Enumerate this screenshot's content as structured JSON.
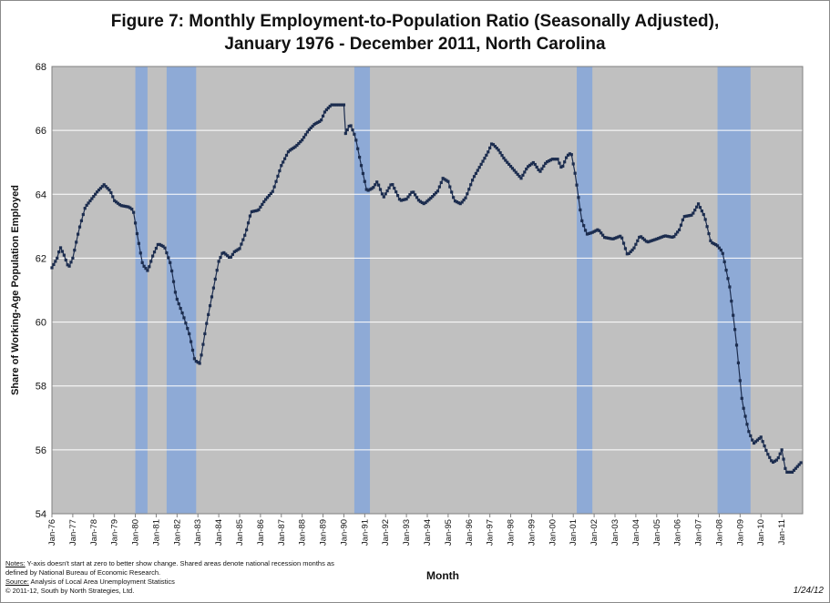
{
  "chart_data": {
    "type": "line",
    "title_line1": "Figure 7: Monthly Employment-to-Population  Ratio (Seasonally Adjusted),",
    "title_line2": "January 1976 - December 2011, North Carolina",
    "xlabel": "Month",
    "ylabel": "Share of  Working-Age Population  Employed",
    "ylim": [
      54,
      68
    ],
    "yticks": [
      "54",
      "56",
      "58",
      "60",
      "62",
      "64",
      "66",
      "68"
    ],
    "xticks": [
      "Jan-76",
      "Jan-77",
      "Jan-78",
      "Jan-79",
      "Jan-80",
      "Jan-81",
      "Jan-82",
      "Jan-83",
      "Jan-84",
      "Jan-85",
      "Jan-86",
      "Jan-87",
      "Jan-88",
      "Jan-89",
      "Jan-90",
      "Jan-91",
      "Jan-92",
      "Jan-93",
      "Jan-94",
      "Jan-95",
      "Jan-96",
      "Jan-97",
      "Jan-98",
      "Jan-99",
      "Jan-00",
      "Jan-01",
      "Jan-02",
      "Jan-03",
      "Jan-04",
      "Jan-05",
      "Jan-06",
      "Jan-07",
      "Jan-08",
      "Jan-09",
      "Jan-10",
      "Jan-11"
    ],
    "grid": true,
    "legend": "none",
    "recessions": [
      {
        "start": "Jan-80",
        "end": "Jul-80"
      },
      {
        "start": "Jul-81",
        "end": "Nov-82"
      },
      {
        "start": "Jul-90",
        "end": "Mar-91"
      },
      {
        "start": "Mar-01",
        "end": "Nov-01"
      },
      {
        "start": "Dec-07",
        "end": "Jun-09"
      }
    ],
    "series": [
      {
        "marker": "square",
        "start": "Jan-76",
        "end": "Dec-11",
        "anchors_year_values": [
          [
            1976.0,
            61.7
          ],
          [
            1976.25,
            62.0
          ],
          [
            1976.4,
            62.35
          ],
          [
            1976.58,
            62.1
          ],
          [
            1976.8,
            61.7
          ],
          [
            1977.0,
            62.0
          ],
          [
            1977.3,
            62.9
          ],
          [
            1977.6,
            63.6
          ],
          [
            1977.9,
            63.85
          ],
          [
            1978.2,
            64.1
          ],
          [
            1978.5,
            64.3
          ],
          [
            1978.8,
            64.1
          ],
          [
            1979.0,
            63.8
          ],
          [
            1979.3,
            63.65
          ],
          [
            1979.7,
            63.6
          ],
          [
            1979.9,
            63.5
          ],
          [
            1980.1,
            62.7
          ],
          [
            1980.35,
            61.8
          ],
          [
            1980.6,
            61.6
          ],
          [
            1980.85,
            62.1
          ],
          [
            1981.1,
            62.45
          ],
          [
            1981.4,
            62.35
          ],
          [
            1981.7,
            61.8
          ],
          [
            1981.95,
            60.8
          ],
          [
            1982.3,
            60.2
          ],
          [
            1982.6,
            59.6
          ],
          [
            1982.85,
            58.8
          ],
          [
            1983.1,
            58.7
          ],
          [
            1983.4,
            59.9
          ],
          [
            1983.7,
            60.9
          ],
          [
            1984.0,
            61.9
          ],
          [
            1984.2,
            62.2
          ],
          [
            1984.55,
            62.0
          ],
          [
            1984.75,
            62.2
          ],
          [
            1985.0,
            62.3
          ],
          [
            1985.3,
            62.8
          ],
          [
            1985.55,
            63.45
          ],
          [
            1985.9,
            63.5
          ],
          [
            1986.2,
            63.8
          ],
          [
            1986.6,
            64.1
          ],
          [
            1987.0,
            64.9
          ],
          [
            1987.35,
            65.35
          ],
          [
            1987.7,
            65.5
          ],
          [
            1988.0,
            65.7
          ],
          [
            1988.3,
            66.0
          ],
          [
            1988.6,
            66.2
          ],
          [
            1988.9,
            66.3
          ],
          [
            1989.1,
            66.6
          ],
          [
            1989.4,
            66.8
          ],
          [
            1990.0,
            66.8
          ],
          [
            1990.08,
            65.9
          ],
          [
            1990.3,
            66.2
          ],
          [
            1990.55,
            65.8
          ],
          [
            1990.8,
            65.0
          ],
          [
            1991.1,
            64.1
          ],
          [
            1991.4,
            64.2
          ],
          [
            1991.6,
            64.4
          ],
          [
            1991.9,
            63.9
          ],
          [
            1992.3,
            64.35
          ],
          [
            1992.7,
            63.8
          ],
          [
            1993.0,
            63.85
          ],
          [
            1993.3,
            64.1
          ],
          [
            1993.6,
            63.8
          ],
          [
            1993.85,
            63.7
          ],
          [
            1994.2,
            63.9
          ],
          [
            1994.5,
            64.1
          ],
          [
            1994.75,
            64.5
          ],
          [
            1995.0,
            64.4
          ],
          [
            1995.3,
            63.8
          ],
          [
            1995.6,
            63.7
          ],
          [
            1995.85,
            63.9
          ],
          [
            1996.2,
            64.5
          ],
          [
            1996.55,
            64.9
          ],
          [
            1996.9,
            65.3
          ],
          [
            1997.1,
            65.6
          ],
          [
            1997.4,
            65.4
          ],
          [
            1997.7,
            65.1
          ],
          [
            1998.1,
            64.8
          ],
          [
            1998.5,
            64.5
          ],
          [
            1998.8,
            64.85
          ],
          [
            1999.1,
            65.0
          ],
          [
            1999.4,
            64.7
          ],
          [
            1999.7,
            65.0
          ],
          [
            2000.0,
            65.1
          ],
          [
            2000.25,
            65.1
          ],
          [
            2000.45,
            64.8
          ],
          [
            2000.7,
            65.2
          ],
          [
            2000.9,
            65.3
          ],
          [
            2001.1,
            64.6
          ],
          [
            2001.4,
            63.2
          ],
          [
            2001.65,
            62.75
          ],
          [
            2001.9,
            62.8
          ],
          [
            2002.2,
            62.9
          ],
          [
            2002.5,
            62.65
          ],
          [
            2002.9,
            62.6
          ],
          [
            2003.3,
            62.7
          ],
          [
            2003.6,
            62.1
          ],
          [
            2003.9,
            62.3
          ],
          [
            2004.2,
            62.7
          ],
          [
            2004.55,
            62.5
          ],
          [
            2005.0,
            62.6
          ],
          [
            2005.4,
            62.7
          ],
          [
            2005.8,
            62.65
          ],
          [
            2006.1,
            62.9
          ],
          [
            2006.3,
            63.3
          ],
          [
            2006.7,
            63.35
          ],
          [
            2007.0,
            63.7
          ],
          [
            2007.3,
            63.3
          ],
          [
            2007.6,
            62.5
          ],
          [
            2007.9,
            62.4
          ],
          [
            2008.15,
            62.2
          ],
          [
            2008.5,
            61.1
          ],
          [
            2008.8,
            59.5
          ],
          [
            2009.1,
            57.5
          ],
          [
            2009.4,
            56.6
          ],
          [
            2009.65,
            56.2
          ],
          [
            2010.0,
            56.4
          ],
          [
            2010.3,
            55.9
          ],
          [
            2010.55,
            55.6
          ],
          [
            2010.8,
            55.7
          ],
          [
            2011.0,
            56.0
          ],
          [
            2011.2,
            55.3
          ],
          [
            2011.5,
            55.3
          ],
          [
            2011.92,
            55.6
          ]
        ]
      }
    ]
  },
  "notes": {
    "line1_prefix": "Notes:",
    "line1_text": " Y-axis doesn't start at zero to better show change.  Shared areas denote national recession months as",
    "line2_text": "defined by National Bureau of Economic Research.",
    "line3_prefix": "Source:",
    "line3_text": "  Analysis of Local Area Unemployment Statistics",
    "line4_text": "© 2011-12, South by North Strategies, Ltd."
  },
  "date_stamp": "1/24/12",
  "colors": {
    "plot_background": "#c0c0c0",
    "recession_band": "#8eaad6",
    "series_line": "#1c2d4f",
    "gridline": "#ffffff"
  }
}
